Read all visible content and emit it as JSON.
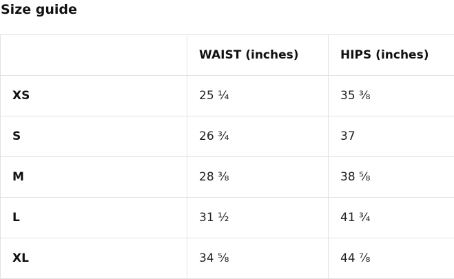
{
  "title": "Size guide",
  "table": {
    "headers": [
      "",
      "WAIST (inches)",
      "HIPS (inches)"
    ],
    "rows": [
      {
        "size": "XS",
        "waist": "25 ¼",
        "hips": "35 ⅜"
      },
      {
        "size": "S",
        "waist": "26 ¾",
        "hips": "37"
      },
      {
        "size": "M",
        "waist": "28 ⅜",
        "hips": "38 ⅝"
      },
      {
        "size": "L",
        "waist": "31 ½",
        "hips": "41 ¾"
      },
      {
        "size": "XL",
        "waist": "34 ⅝",
        "hips": "44 ⅞"
      }
    ],
    "border_color": "#e1e1e1",
    "text_color": "#222222"
  }
}
